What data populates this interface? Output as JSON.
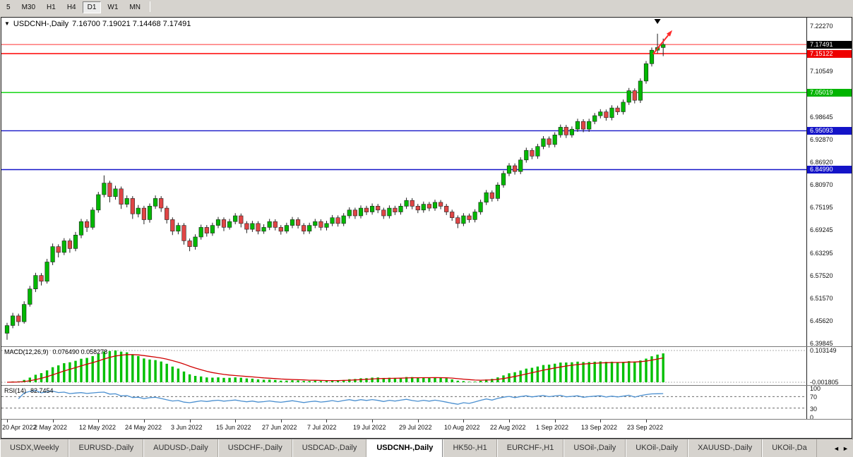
{
  "toolbar": {
    "timeframes": [
      {
        "label": "5",
        "active": false
      },
      {
        "label": "M30",
        "active": false
      },
      {
        "label": "H1",
        "active": false
      },
      {
        "label": "H4",
        "active": false
      },
      {
        "label": "D1",
        "active": true
      },
      {
        "label": "W1",
        "active": false
      },
      {
        "label": "MN",
        "active": false
      }
    ]
  },
  "chart": {
    "title_symbol": "USDCNH-,Daily",
    "title_ohlc": "7.16700 7.19021 7.14468 7.17491",
    "dropdown_icon": "▼",
    "price_scale_labels": [
      "7.22270",
      "7.10549",
      "6.98645",
      "6.92870",
      "6.86920",
      "6.80970",
      "6.75195",
      "6.69245",
      "6.63295",
      "6.57520",
      "6.51570",
      "6.45620",
      "6.39845"
    ],
    "macd": {
      "label": "MACD(12,26,9)",
      "values": "0.076490 0.058278",
      "axis_max": "0.103149",
      "axis_min": "-0.001805"
    },
    "rsi": {
      "label": "RSI(14)",
      "value": "82.7454",
      "axis_labels": [
        "100",
        "70",
        "30",
        "0"
      ]
    }
  },
  "chart_data": {
    "type": "candlestick",
    "symbol": "USDCNH-",
    "timeframe": "Daily",
    "current_bar": {
      "open": 7.167,
      "high": 7.19021,
      "low": 7.14468,
      "close": 7.17491
    },
    "y_axis": {
      "top": 7.2227,
      "bottom": 6.39845
    },
    "x_labels": [
      {
        "i": 0,
        "t": "20 Apr 2022"
      },
      {
        "i": 8,
        "t": "2 May 2022"
      },
      {
        "i": 16,
        "t": "12 May 2022"
      },
      {
        "i": 24,
        "t": "24 May 2022"
      },
      {
        "i": 32,
        "t": "3 Jun 2022"
      },
      {
        "i": 40,
        "t": "15 Jun 2022"
      },
      {
        "i": 48,
        "t": "27 Jun 2022"
      },
      {
        "i": 56,
        "t": "7 Jul 2022"
      },
      {
        "i": 64,
        "t": "19 Jul 2022"
      },
      {
        "i": 72,
        "t": "29 Jul 2022"
      },
      {
        "i": 80,
        "t": "10 Aug 2022"
      },
      {
        "i": 88,
        "t": "22 Aug 2022"
      },
      {
        "i": 96,
        "t": "1 Sep 2022"
      },
      {
        "i": 104,
        "t": "13 Sep 2022"
      },
      {
        "i": 112,
        "t": "23 Sep 2022"
      }
    ],
    "candles": [
      [
        6.425,
        6.452,
        6.408,
        6.445
      ],
      [
        6.445,
        6.478,
        6.438,
        6.47
      ],
      [
        6.47,
        6.476,
        6.444,
        6.455
      ],
      [
        6.455,
        6.508,
        6.45,
        6.5
      ],
      [
        6.5,
        6.548,
        6.494,
        6.54
      ],
      [
        6.54,
        6.582,
        6.532,
        6.575
      ],
      [
        6.575,
        6.581,
        6.549,
        6.56
      ],
      [
        6.56,
        6.618,
        6.554,
        6.61
      ],
      [
        6.61,
        6.658,
        6.602,
        6.65
      ],
      [
        6.65,
        6.656,
        6.622,
        6.635
      ],
      [
        6.635,
        6.672,
        6.628,
        6.665
      ],
      [
        6.665,
        6.671,
        6.634,
        6.645
      ],
      [
        6.645,
        6.688,
        6.638,
        6.68
      ],
      [
        6.68,
        6.722,
        6.672,
        6.715
      ],
      [
        6.715,
        6.721,
        6.688,
        6.7
      ],
      [
        6.7,
        6.752,
        6.694,
        6.745
      ],
      [
        6.745,
        6.792,
        6.738,
        6.785
      ],
      [
        6.785,
        6.835,
        6.778,
        6.815
      ],
      [
        6.815,
        6.821,
        6.765,
        6.78
      ],
      [
        6.78,
        6.808,
        6.772,
        6.8
      ],
      [
        6.8,
        6.806,
        6.748,
        6.76
      ],
      [
        6.76,
        6.783,
        6.752,
        6.775
      ],
      [
        6.775,
        6.781,
        6.722,
        6.735
      ],
      [
        6.735,
        6.758,
        6.726,
        6.75
      ],
      [
        6.75,
        6.756,
        6.708,
        6.72
      ],
      [
        6.72,
        6.762,
        6.712,
        6.755
      ],
      [
        6.755,
        6.783,
        6.748,
        6.775
      ],
      [
        6.775,
        6.781,
        6.74,
        6.75
      ],
      [
        6.75,
        6.756,
        6.71,
        6.72
      ],
      [
        6.72,
        6.726,
        6.68,
        6.69
      ],
      [
        6.69,
        6.712,
        6.682,
        6.705
      ],
      [
        6.705,
        6.711,
        6.655,
        6.665
      ],
      [
        6.665,
        6.671,
        6.638,
        6.65
      ],
      [
        6.65,
        6.682,
        6.642,
        6.675
      ],
      [
        6.675,
        6.707,
        6.668,
        6.7
      ],
      [
        6.7,
        6.706,
        6.676,
        6.685
      ],
      [
        6.685,
        6.712,
        6.678,
        6.705
      ],
      [
        6.705,
        6.727,
        6.698,
        6.72
      ],
      [
        6.72,
        6.726,
        6.69,
        6.7
      ],
      [
        6.7,
        6.722,
        6.694,
        6.715
      ],
      [
        6.715,
        6.737,
        6.708,
        6.73
      ],
      [
        6.73,
        6.736,
        6.7,
        6.71
      ],
      [
        6.71,
        6.716,
        6.685,
        6.695
      ],
      [
        6.695,
        6.717,
        6.688,
        6.71
      ],
      [
        6.71,
        6.716,
        6.682,
        6.69
      ],
      [
        6.69,
        6.708,
        6.683,
        6.7
      ],
      [
        6.7,
        6.722,
        6.693,
        6.715
      ],
      [
        6.715,
        6.721,
        6.692,
        6.7
      ],
      [
        6.7,
        6.706,
        6.681,
        6.69
      ],
      [
        6.69,
        6.712,
        6.684,
        6.705
      ],
      [
        6.705,
        6.727,
        6.698,
        6.72
      ],
      [
        6.72,
        6.726,
        6.697,
        6.705
      ],
      [
        6.705,
        6.711,
        6.682,
        6.69
      ],
      [
        6.69,
        6.712,
        6.683,
        6.705
      ],
      [
        6.705,
        6.722,
        6.698,
        6.715
      ],
      [
        6.715,
        6.721,
        6.692,
        6.7
      ],
      [
        6.7,
        6.717,
        6.692,
        6.71
      ],
      [
        6.71,
        6.732,
        6.703,
        6.725
      ],
      [
        6.725,
        6.731,
        6.702,
        6.71
      ],
      [
        6.71,
        6.737,
        6.703,
        6.73
      ],
      [
        6.73,
        6.752,
        6.723,
        6.745
      ],
      [
        6.745,
        6.751,
        6.722,
        6.73
      ],
      [
        6.73,
        6.757,
        6.723,
        6.75
      ],
      [
        6.75,
        6.756,
        6.732,
        6.74
      ],
      [
        6.74,
        6.762,
        6.733,
        6.755
      ],
      [
        6.755,
        6.761,
        6.737,
        6.745
      ],
      [
        6.745,
        6.751,
        6.722,
        6.73
      ],
      [
        6.73,
        6.757,
        6.723,
        6.75
      ],
      [
        6.75,
        6.756,
        6.732,
        6.74
      ],
      [
        6.74,
        6.762,
        6.733,
        6.755
      ],
      [
        6.755,
        6.777,
        6.748,
        6.77
      ],
      [
        6.77,
        6.776,
        6.747,
        6.755
      ],
      [
        6.755,
        6.761,
        6.737,
        6.745
      ],
      [
        6.745,
        6.767,
        6.738,
        6.76
      ],
      [
        6.76,
        6.766,
        6.742,
        6.75
      ],
      [
        6.75,
        6.772,
        6.743,
        6.765
      ],
      [
        6.765,
        6.771,
        6.747,
        6.755
      ],
      [
        6.755,
        6.761,
        6.732,
        6.74
      ],
      [
        6.74,
        6.746,
        6.717,
        6.725
      ],
      [
        6.725,
        6.731,
        6.698,
        6.71
      ],
      [
        6.71,
        6.737,
        6.703,
        6.73
      ],
      [
        6.73,
        6.736,
        6.712,
        6.72
      ],
      [
        6.72,
        6.747,
        6.713,
        6.74
      ],
      [
        6.74,
        6.772,
        6.733,
        6.765
      ],
      [
        6.765,
        6.797,
        6.758,
        6.79
      ],
      [
        6.79,
        6.796,
        6.767,
        6.775
      ],
      [
        6.775,
        6.817,
        6.768,
        6.81
      ],
      [
        6.81,
        6.847,
        6.803,
        6.84
      ],
      [
        6.84,
        6.867,
        6.833,
        6.86
      ],
      [
        6.86,
        6.866,
        6.837,
        6.845
      ],
      [
        6.845,
        6.882,
        6.838,
        6.875
      ],
      [
        6.875,
        6.907,
        6.868,
        6.9
      ],
      [
        6.9,
        6.906,
        6.877,
        6.885
      ],
      [
        6.885,
        6.917,
        6.878,
        6.91
      ],
      [
        6.91,
        6.937,
        6.903,
        6.93
      ],
      [
        6.93,
        6.936,
        6.907,
        6.915
      ],
      [
        6.915,
        6.947,
        6.908,
        6.94
      ],
      [
        6.94,
        6.967,
        6.933,
        6.96
      ],
      [
        6.96,
        6.966,
        6.932,
        6.94
      ],
      [
        6.94,
        6.962,
        6.933,
        6.955
      ],
      [
        6.955,
        6.982,
        6.948,
        6.975
      ],
      [
        6.975,
        6.981,
        6.947,
        6.955
      ],
      [
        6.955,
        6.982,
        6.948,
        6.975
      ],
      [
        6.975,
        6.997,
        6.968,
        6.99
      ],
      [
        6.99,
        7.007,
        6.983,
        7.0
      ],
      [
        7.0,
        7.006,
        6.977,
        6.985
      ],
      [
        6.985,
        7.017,
        6.978,
        7.01
      ],
      [
        7.01,
        7.016,
        6.992,
        7.0
      ],
      [
        7.0,
        7.032,
        6.993,
        7.025
      ],
      [
        7.025,
        7.062,
        7.018,
        7.055
      ],
      [
        7.055,
        7.061,
        7.022,
        7.03
      ],
      [
        7.03,
        7.087,
        7.023,
        7.08
      ],
      [
        7.08,
        7.132,
        7.073,
        7.125
      ],
      [
        7.125,
        7.167,
        7.118,
        7.16
      ],
      [
        7.16,
        7.203,
        7.152,
        7.167
      ],
      [
        7.167,
        7.19021,
        7.14468,
        7.17491
      ]
    ],
    "hlines": [
      {
        "price": 7.15122,
        "label": "7.15122",
        "color": "#ff0000",
        "badge_bg": "#ee0000"
      },
      {
        "price": 7.05019,
        "label": "7.05019",
        "color": "#00d200",
        "badge_bg": "#00b400"
      },
      {
        "price": 6.95093,
        "label": "6.95093",
        "color": "#1414c8",
        "badge_bg": "#1414c8"
      },
      {
        "price": 6.8499,
        "label": "6.84990",
        "color": "#1414c8",
        "badge_bg": "#1414c8"
      }
    ],
    "current_price": {
      "price": 7.17491,
      "label": "7.17491",
      "line_color": "#ff3333",
      "badge_bg": "#000000"
    },
    "annotations": {
      "high_marker_bar": 114,
      "trend_arrow": {
        "from_bar": 113.2,
        "from_price": 7.15,
        "to_bar": 116.6,
        "to_price": 7.212,
        "color": "#ff2a2a"
      }
    },
    "indicators": {
      "macd": {
        "params": [
          12,
          26,
          9
        ],
        "current": [
          0.07649,
          0.058278
        ],
        "axis_max": 0.103149,
        "axis_min": -0.001805
      },
      "rsi": {
        "period": 14,
        "current": 82.7454,
        "levels": [
          70,
          30
        ],
        "axis_range": [
          0,
          100
        ]
      }
    },
    "colors": {
      "up": "#00b800",
      "down": "#e04545",
      "wick": "#222222",
      "macd_hist": "#00c000",
      "macd_signal": "#d00000",
      "rsi_line": "#4a8fd0"
    }
  },
  "tabs": [
    {
      "label": "USDX,Weekly",
      "active": false
    },
    {
      "label": "EURUSD-,Daily",
      "active": false
    },
    {
      "label": "AUDUSD-,Daily",
      "active": false
    },
    {
      "label": "USDCHF-,Daily",
      "active": false
    },
    {
      "label": "USDCAD-,Daily",
      "active": false
    },
    {
      "label": "USDCNH-,Daily",
      "active": true
    },
    {
      "label": "HK50-,H1",
      "active": false
    },
    {
      "label": "EURCHF-,H1",
      "active": false
    },
    {
      "label": "USOil-,Daily",
      "active": false
    },
    {
      "label": "UKOil-,Daily",
      "active": false
    },
    {
      "label": "XAUUSD-,Daily",
      "active": false
    },
    {
      "label": "UKOil-,Da",
      "active": false
    }
  ],
  "tab_arrows": {
    "left": "◄",
    "right": "►"
  }
}
